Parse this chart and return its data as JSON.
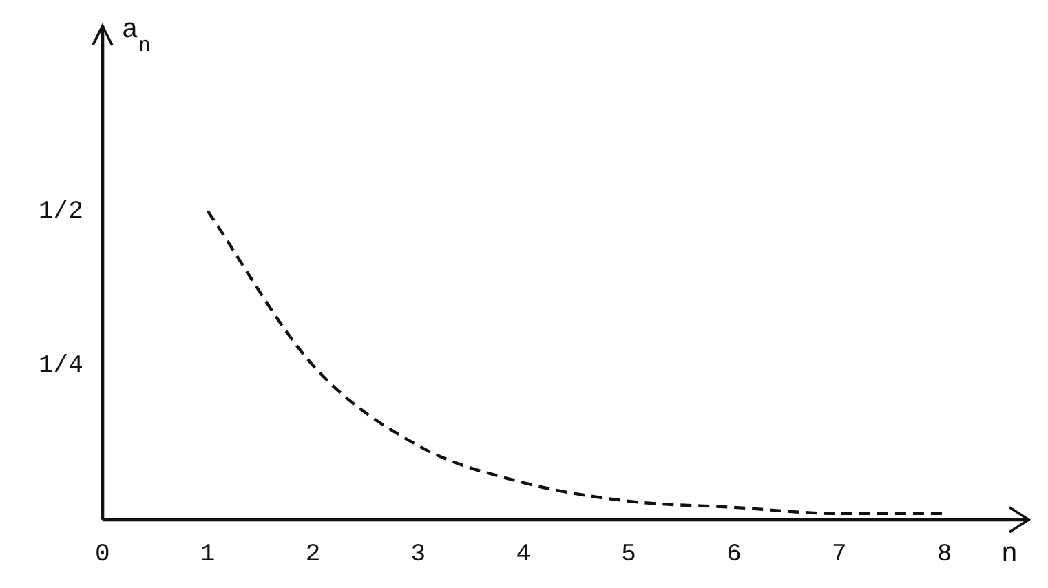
{
  "chart_data": {
    "type": "line",
    "xlabel": "n",
    "ylabel": "a$_{n}$",
    "x": [
      1,
      2,
      3,
      4,
      5,
      6,
      7,
      8
    ],
    "series": [
      {
        "color": "#111111",
        "values": [
          0.5,
          0.25,
          0.12,
          0.06,
          0.03,
          0.02,
          0.01,
          0.01
        ]
      }
    ],
    "xlim": [
      0,
      8.8
    ],
    "xticks": [
      0,
      1,
      2,
      3,
      4,
      5,
      6,
      7,
      8
    ],
    "ylim": [
      0,
      0.8
    ],
    "yticks": [
      {
        "value": 0.25,
        "label": "1/4"
      },
      {
        "value": 0.5,
        "label": "1/2"
      }
    ],
    "grid": false,
    "legend": false,
    "marker": "none",
    "line_style": "dashed"
  }
}
